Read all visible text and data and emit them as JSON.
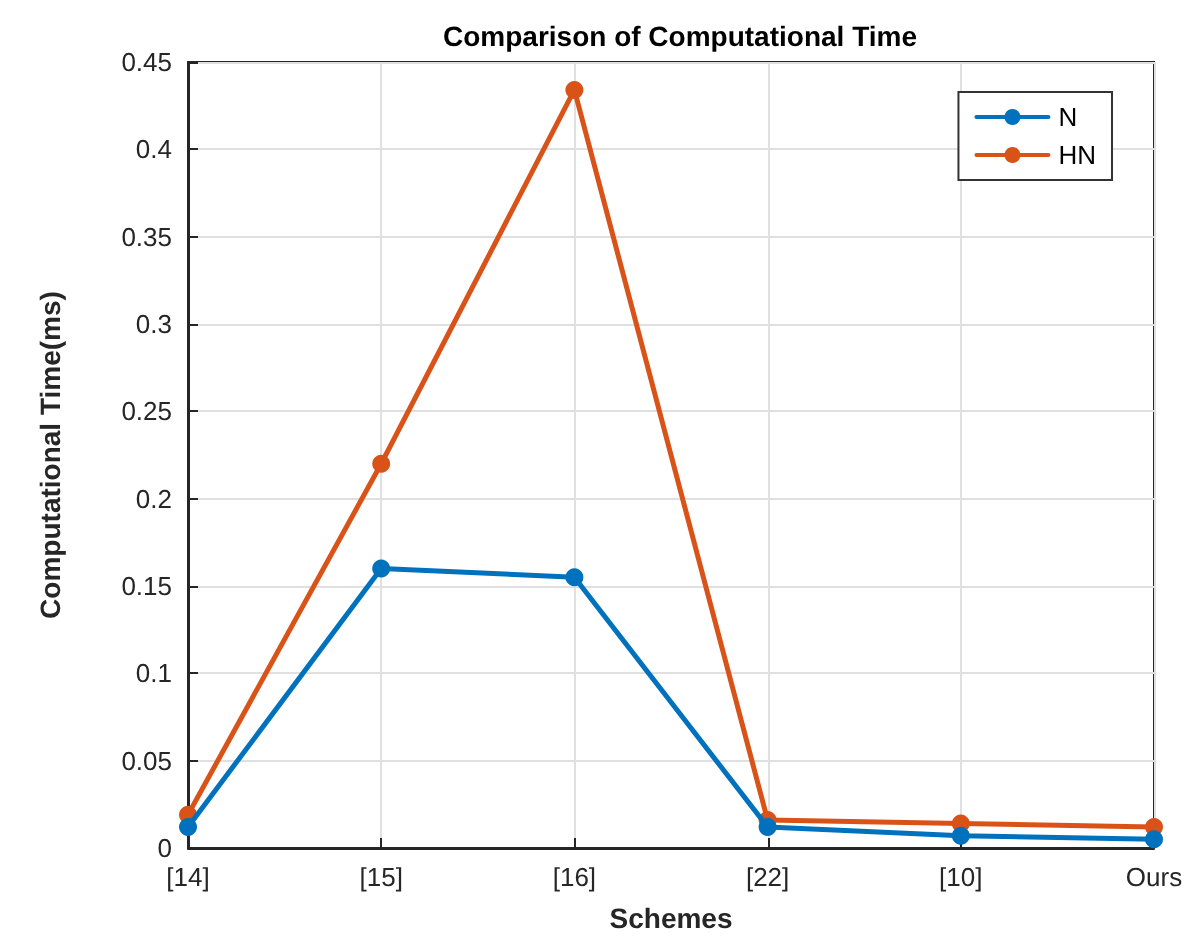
{
  "chart_data": {
    "type": "line",
    "title": "Comparison of Computational Time",
    "xlabel": "Schemes",
    "ylabel": "Computational Time(ms)",
    "categories": [
      "[14]",
      "[15]",
      "[16]",
      "[22]",
      "[10]",
      "Ours"
    ],
    "series": [
      {
        "name": "N",
        "color": "#0072bd",
        "values": [
          0.012,
          0.16,
          0.155,
          0.012,
          0.007,
          0.005
        ]
      },
      {
        "name": "HN",
        "color": "#d95319",
        "values": [
          0.019,
          0.22,
          0.434,
          0.016,
          0.014,
          0.012
        ]
      }
    ],
    "ylim": [
      0,
      0.45
    ],
    "yticks": [
      0,
      0.05,
      0.1,
      0.15,
      0.2,
      0.25,
      0.3,
      0.35,
      0.4,
      0.45
    ],
    "grid": true,
    "legend": "top right",
    "marker": "circle",
    "line_style": "solid"
  }
}
